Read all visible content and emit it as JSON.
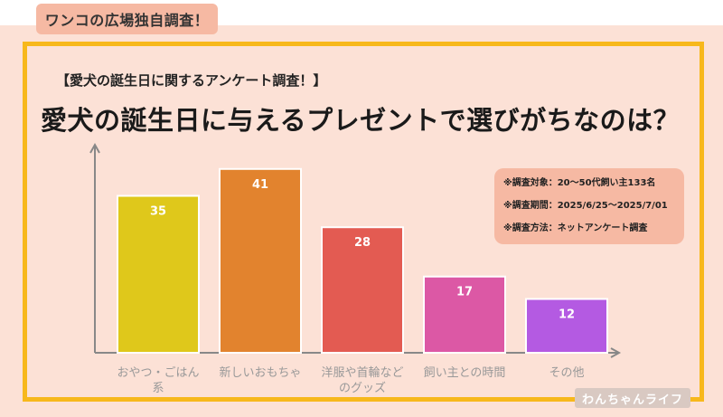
{
  "header": {
    "tag": "ワンコの広場独自調査！",
    "subtitle": "【愛犬の誕生日に関するアンケート調査！】",
    "title": "愛犬の誕生日に与えるプレゼントで選びがちなのは？"
  },
  "survey_info": {
    "target": "※調査対象：20〜50代飼い主133名",
    "period": "※調査期間：2025/6/25〜2025/7/01",
    "method": "※調査方法：ネットアンケート調査"
  },
  "watermark": "わんちゃんライフ",
  "colors": {
    "background": "#fce1d6",
    "frame": "#f7b81c",
    "tag": "#f6b9a3",
    "axis": "#888888"
  },
  "chart_data": {
    "type": "bar",
    "title": "愛犬の誕生日に与えるプレゼントで選びがちなのは？",
    "categories": [
      "おやつ・ごはん系",
      "新しいおもちゃ",
      "洋服や首輪などのグッズ",
      "飼い主との時間",
      "その他"
    ],
    "category_lines": [
      [
        "おやつ・ごはん",
        "系"
      ],
      [
        "新しいおもちゃ"
      ],
      [
        "洋服や首輪など",
        "のグッズ"
      ],
      [
        "飼い主との時間"
      ],
      [
        "その他"
      ]
    ],
    "values": [
      35,
      41,
      28,
      17,
      12
    ],
    "colors": [
      "#dfc81b",
      "#e2832e",
      "#e35b52",
      "#dc58a5",
      "#b45ae2"
    ],
    "ylim": [
      0,
      46
    ],
    "xlabel": "",
    "ylabel": "",
    "grid": false,
    "data_labels": true
  }
}
